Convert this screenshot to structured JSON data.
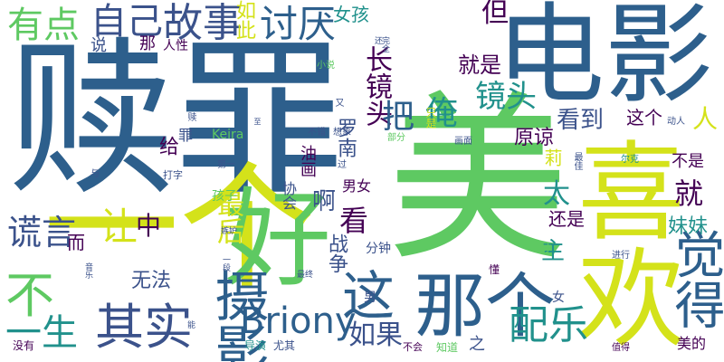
{
  "palette": {
    "navy": "#2d5f8c",
    "teal": "#21918c",
    "green": "#5ec962",
    "yellow": "#d4e21a",
    "purple": "#440154",
    "blue": "#3b528b",
    "lime": "#9fd938",
    "grey": "#888888"
  },
  "words": [
    "赎罪",
    "电影",
    "美",
    "一个",
    "好",
    "喜欢",
    "觉得",
    "那个",
    "这",
    "摄影",
    "Briony",
    "其实",
    "配乐",
    "如果",
    "不",
    "一生",
    "谎言",
    "让",
    "中",
    "故事",
    "讨厌",
    "自己",
    "有点",
    "女孩",
    "如此",
    "但",
    "就是",
    "镜头",
    "长镜头",
    "把",
    "俺",
    "罗南",
    "看到",
    "这个",
    "原谅",
    "人",
    "看",
    "就",
    "太",
    "最后",
    "啊",
    "战争",
    "主",
    "妹妹",
    "还是",
    "不是",
    "男女",
    "莉",
    "Keira",
    "孩子",
    "无法",
    "分钟",
    "给",
    "罪",
    "油画",
    "说",
    "那",
    "人性",
    "小说",
    "而",
    "之",
    "美的",
    "知道",
    "不会",
    "导演",
    "尤其",
    "没有",
    "一段",
    "音乐",
    "才",
    "懂",
    "女",
    "男",
    "进行",
    "值得",
    "尔克",
    "最佳",
    "画面",
    "部分",
    "想象",
    "不错",
    "第一",
    "过",
    "打字",
    "与",
    "嫉妒",
    "最终",
    "协会",
    "只是",
    "又",
    "赎",
    "至",
    "能",
    "动人",
    "还",
    "完全"
  ]
}
